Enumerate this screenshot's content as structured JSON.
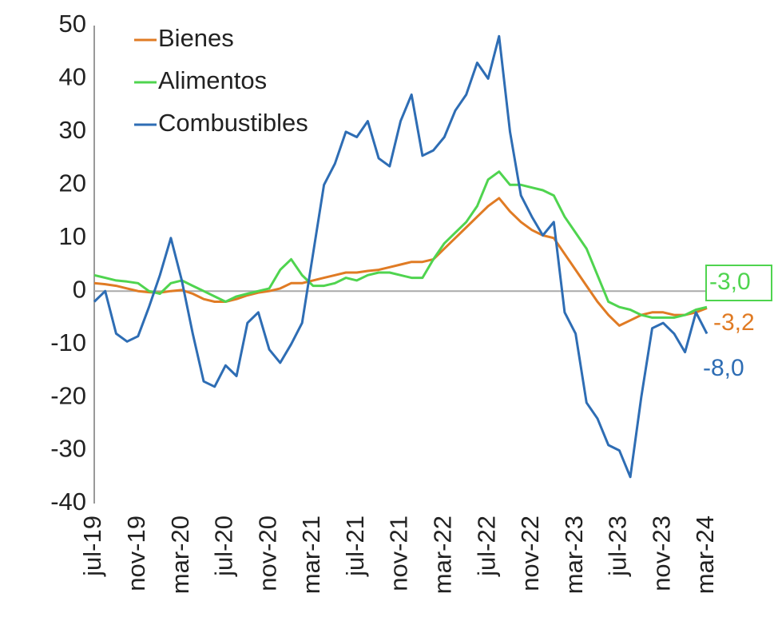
{
  "chart_data": {
    "type": "line",
    "categories": [
      "jul-19",
      null,
      null,
      null,
      "nov-19",
      null,
      null,
      null,
      "mar-20",
      null,
      null,
      null,
      "jul-20",
      null,
      null,
      null,
      "nov-20",
      null,
      null,
      null,
      "mar-21",
      null,
      null,
      null,
      "jul-21",
      null,
      null,
      null,
      "nov-21",
      null,
      null,
      null,
      "mar-22",
      null,
      null,
      null,
      "jul-22",
      null,
      null,
      null,
      "nov-22",
      null,
      null,
      null,
      "mar-23",
      null,
      null,
      null,
      "jul-23",
      null,
      null,
      null,
      "nov-23",
      null,
      null,
      null,
      "mar-24"
    ],
    "series": [
      {
        "name": "Bienes",
        "color": "#e07b24",
        "values": [
          1.5,
          1.3,
          1,
          0.5,
          0,
          -0.2,
          -0.3,
          0,
          0.2,
          -0.5,
          -1.5,
          -2,
          -2,
          -1.5,
          -0.8,
          -0.3,
          0,
          0.5,
          1.5,
          1.5,
          2,
          2.5,
          3,
          3.5,
          3.5,
          3.8,
          4,
          4.5,
          5,
          5.5,
          5.5,
          6,
          8,
          10,
          12,
          14,
          16,
          17.5,
          15,
          13,
          11.5,
          10.5,
          10,
          7,
          4,
          1,
          -2,
          -4.5,
          -6.5,
          -5.5,
          -4.5,
          -4,
          -4,
          -4.5,
          -4.5,
          -4,
          -3.2
        ],
        "value_labels": [
          null,
          null,
          null,
          null,
          null,
          null,
          null,
          null,
          null,
          null,
          null,
          null,
          null,
          null,
          null,
          null,
          null,
          null,
          null,
          null,
          null,
          null,
          null,
          null,
          null,
          null,
          null,
          null,
          null,
          null,
          null,
          null,
          null,
          null,
          null,
          null,
          null,
          null,
          null,
          null,
          null,
          null,
          null,
          null,
          null,
          null,
          null,
          null,
          null,
          null,
          null,
          null,
          null,
          null,
          null,
          null,
          "-3,2"
        ]
      },
      {
        "name": "Alimentos",
        "color": "#4fd44f",
        "values": [
          3,
          2.5,
          2,
          1.8,
          1.5,
          0,
          -0.5,
          1.5,
          2,
          1,
          0,
          -1,
          -2,
          -1,
          -0.5,
          0,
          0.5,
          4,
          6,
          3,
          1,
          1,
          1.5,
          2.5,
          2,
          3,
          3.5,
          3.5,
          3,
          2.5,
          2.5,
          6,
          9,
          11,
          13,
          16,
          21,
          22.5,
          20,
          20,
          19.5,
          19,
          18,
          14,
          11,
          8,
          3,
          -2,
          -3,
          -3.5,
          -4.5,
          -5,
          -5,
          -5,
          -4.5,
          -3.5,
          -3.0
        ],
        "value_labels": [
          null,
          null,
          null,
          null,
          null,
          null,
          null,
          null,
          null,
          null,
          null,
          null,
          null,
          null,
          null,
          null,
          null,
          null,
          null,
          null,
          null,
          null,
          null,
          null,
          null,
          null,
          null,
          null,
          null,
          null,
          null,
          null,
          null,
          null,
          null,
          null,
          null,
          null,
          null,
          null,
          null,
          null,
          null,
          null,
          null,
          null,
          null,
          null,
          null,
          null,
          null,
          null,
          null,
          null,
          null,
          null,
          "-3,0"
        ]
      },
      {
        "name": "Combustibles",
        "color": "#2e6db4",
        "values": [
          -2,
          0,
          -8,
          -9.5,
          -8.5,
          -3,
          3,
          10,
          2,
          -8,
          -17,
          -18,
          -14,
          -16,
          -6,
          -4,
          -11,
          -13.5,
          -10,
          -6,
          7,
          20,
          24,
          30,
          29,
          32,
          25,
          23.5,
          32,
          37,
          25.5,
          26.5,
          29,
          34,
          37,
          43,
          40,
          48,
          30,
          18,
          14,
          10.5,
          13,
          -4,
          -8,
          -21,
          -24,
          -29,
          -30,
          -35,
          -20,
          -7,
          -6,
          -8,
          -11.5,
          -4,
          -8
        ],
        "value_labels": [
          null,
          null,
          null,
          null,
          null,
          null,
          null,
          null,
          null,
          null,
          null,
          null,
          null,
          null,
          null,
          null,
          null,
          null,
          null,
          null,
          null,
          null,
          null,
          null,
          null,
          null,
          null,
          null,
          null,
          null,
          null,
          null,
          null,
          null,
          null,
          null,
          null,
          null,
          null,
          null,
          null,
          null,
          null,
          null,
          null,
          null,
          null,
          null,
          null,
          null,
          null,
          null,
          null,
          null,
          null,
          null,
          "-8,0"
        ]
      }
    ],
    "ylim": [
      -40,
      50
    ],
    "yticks": [
      -40,
      -30,
      -20,
      -10,
      0,
      10,
      20,
      30,
      40,
      50
    ],
    "grid": false
  }
}
